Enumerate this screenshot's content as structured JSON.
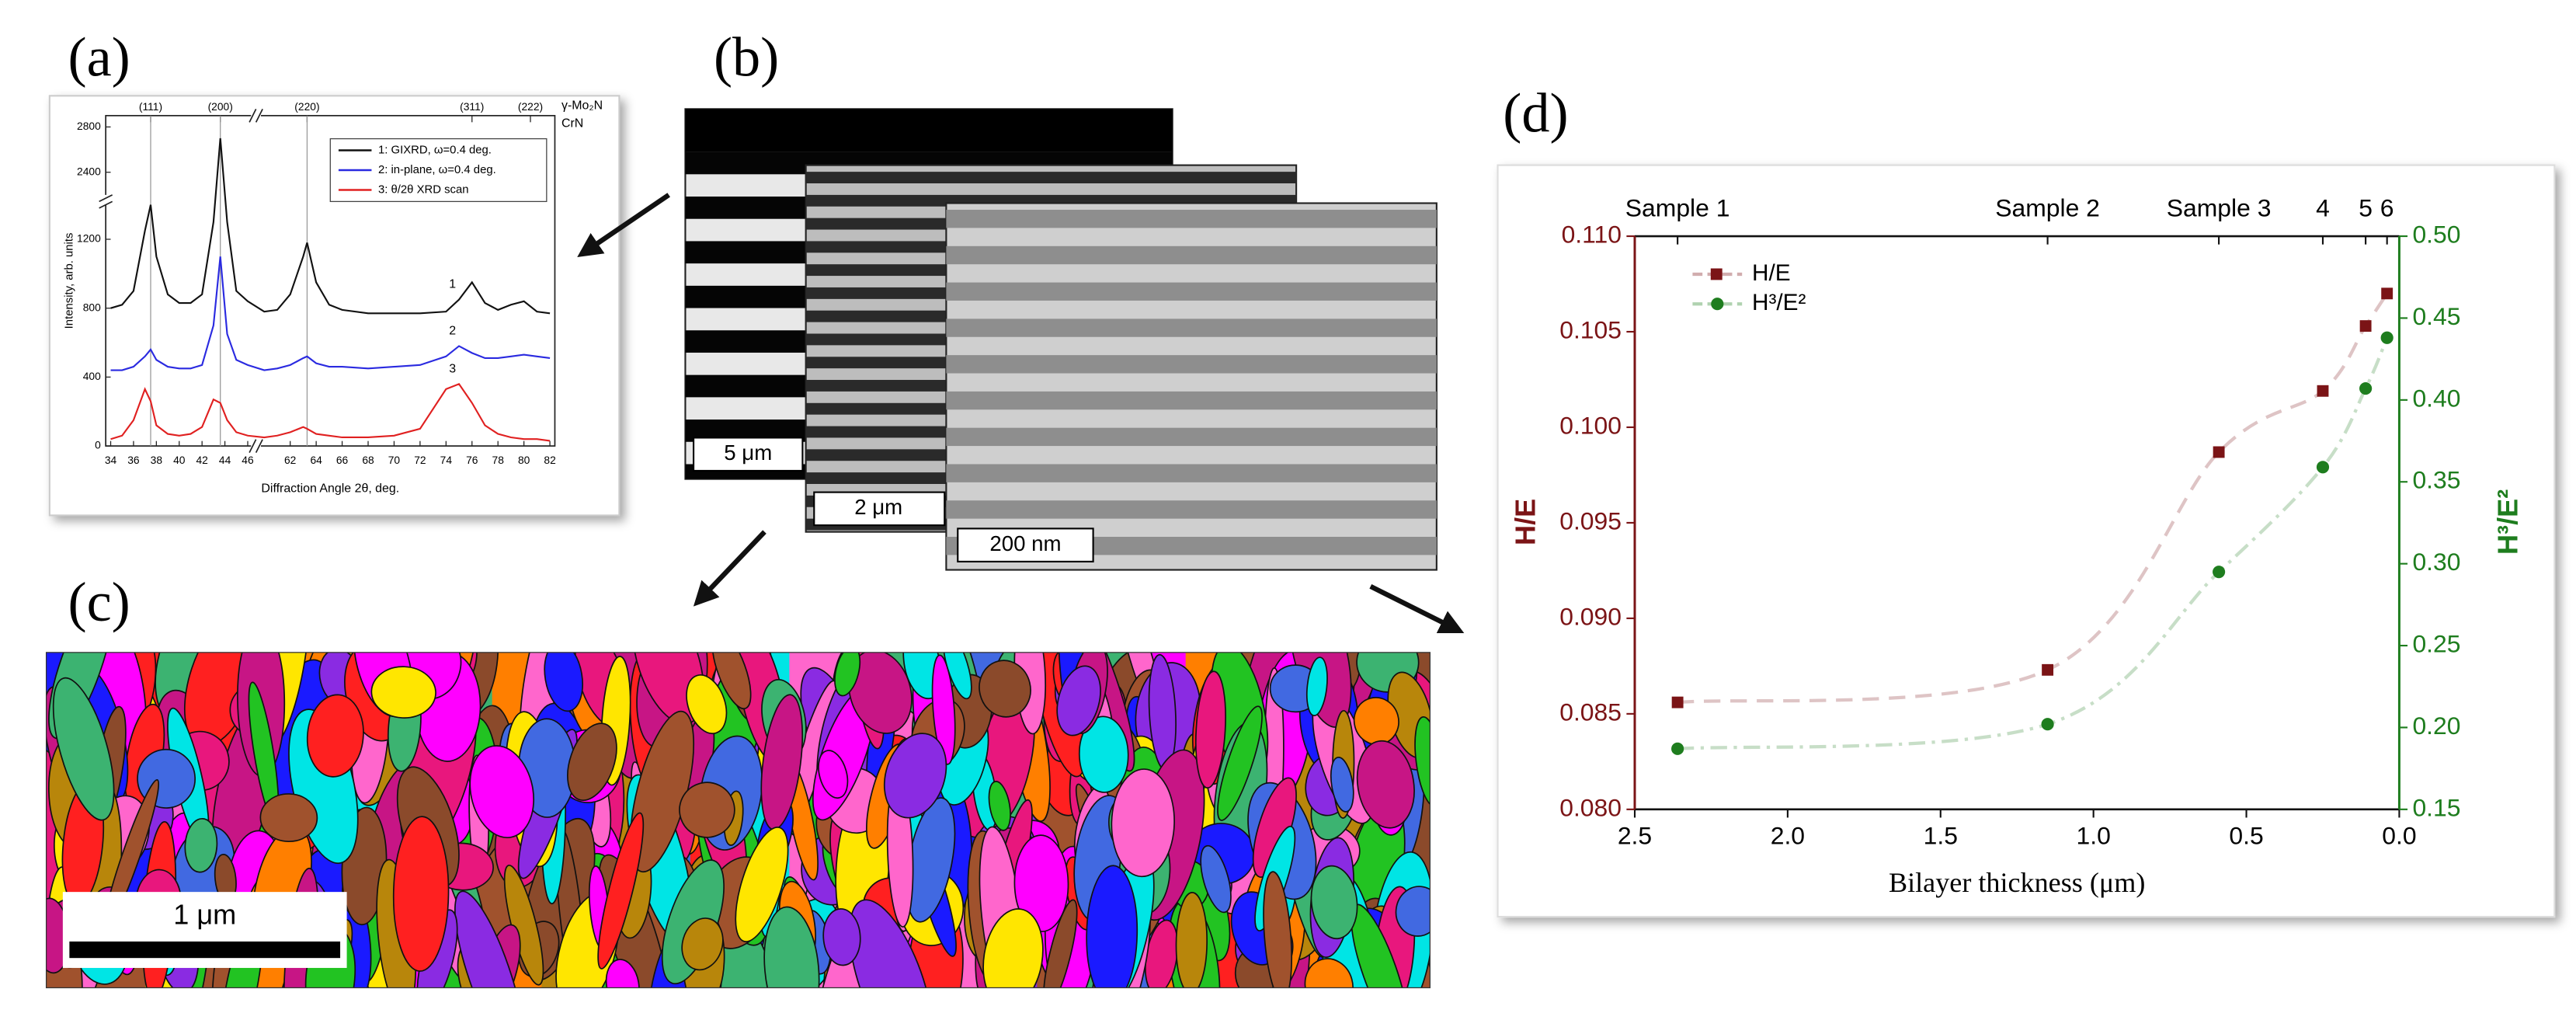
{
  "panel_labels": [
    "(a)",
    "(b)",
    "(c)",
    "(d)"
  ],
  "scale_bars": [
    "5 μm",
    "2 μm",
    "200 nm",
    "1 μm"
  ],
  "chart_data": [
    {
      "type": "line",
      "xlabel": "Diffraction Angle 2θ, deg.",
      "ylabel": "Intensity, arb. units",
      "xlim": [
        34,
        82
      ],
      "xbreak": [
        46,
        60
      ],
      "xticks": [
        34,
        36,
        38,
        40,
        42,
        44,
        46,
        62,
        64,
        66,
        68,
        70,
        72,
        74,
        76,
        78,
        80,
        82
      ],
      "ylim": [
        0,
        2900
      ],
      "ybreak": [
        1400,
        2200
      ],
      "yticks": [
        0,
        400,
        800,
        1200,
        2400,
        2800
      ],
      "x": [
        34,
        35,
        36,
        37,
        37.5,
        38,
        39,
        40,
        41,
        42,
        43,
        43.6,
        44.2,
        45,
        46,
        60,
        61,
        62,
        63,
        63.3,
        64,
        65,
        66,
        68,
        70,
        72,
        74,
        75,
        76,
        77,
        78,
        79,
        80,
        81,
        82
      ],
      "series": [
        {
          "name": "1: GIXRD, ω=0.4 deg.",
          "color": "#111111",
          "values": [
            800,
            820,
            900,
            1250,
            1400,
            1100,
            880,
            830,
            830,
            880,
            1300,
            2700,
            1300,
            900,
            840,
            780,
            790,
            880,
            1100,
            1180,
            950,
            820,
            790,
            770,
            770,
            770,
            780,
            850,
            950,
            830,
            790,
            820,
            840,
            780,
            770
          ]
        },
        {
          "name": "2: in-plane, ω=0.4 deg.",
          "color": "#2a2ae0",
          "values": [
            440,
            440,
            460,
            520,
            560,
            500,
            460,
            450,
            450,
            470,
            700,
            1100,
            650,
            500,
            470,
            440,
            450,
            470,
            510,
            520,
            480,
            460,
            460,
            450,
            460,
            470,
            520,
            580,
            540,
            510,
            510,
            520,
            530,
            520,
            510
          ]
        },
        {
          "name": "3: θ/2θ XRD scan",
          "color": "#e02020",
          "values": [
            40,
            60,
            150,
            330,
            260,
            120,
            70,
            60,
            70,
            110,
            270,
            250,
            150,
            80,
            60,
            50,
            60,
            80,
            110,
            100,
            70,
            60,
            50,
            50,
            60,
            100,
            330,
            360,
            250,
            120,
            70,
            50,
            40,
            40,
            30
          ]
        }
      ],
      "curve_labels": [
        "1",
        "2",
        "3"
      ],
      "annotations": [
        {
          "x": 37.5,
          "text": "(111)"
        },
        {
          "x": 43.6,
          "text": "(200)"
        },
        {
          "x": 63.3,
          "text": "(220)"
        },
        {
          "x": 76,
          "text": "(311)"
        },
        {
          "x": 80.5,
          "text": "(222)"
        }
      ],
      "phase_labels": [
        "γ-Mo₂N",
        "CrN"
      ],
      "legend": "upper right"
    },
    {
      "type": "scatter",
      "xlabel": "Bilayer thickness (μm)",
      "ylabel": "H/E",
      "y2label": "H³/E²",
      "xlim": [
        2.5,
        0.0
      ],
      "xticks": [
        2.5,
        {
          "value": 2.0,
          "label": "2.0"
        },
        1.5,
        {
          "value": 1.0,
          "label": "1.0"
        },
        0.5,
        {
          "value": 0.0,
          "label": "0.0"
        }
      ],
      "ylim": [
        0.08,
        0.11
      ],
      "yticks": [
        {
          "value": 0.08,
          "label": "0.080"
        },
        0.085,
        {
          "value": 0.09,
          "label": "0.090"
        },
        0.095,
        {
          "value": 0.1,
          "label": "0.100"
        },
        0.105,
        {
          "value": 0.11,
          "label": "0.110"
        }
      ],
      "y2lim": [
        0.15,
        0.5
      ],
      "y2ticks": [
        0.15,
        {
          "value": 0.2,
          "label": "0.20"
        },
        0.25,
        {
          "value": 0.3,
          "label": "0.30"
        },
        0.35,
        {
          "value": 0.4,
          "label": "0.40"
        },
        0.45,
        {
          "value": 0.5,
          "label": "0.50"
        }
      ],
      "x": [
        2.36,
        1.15,
        0.59,
        0.25,
        0.11,
        0.04
      ],
      "sample_labels": [
        "Sample 1",
        "Sample 2",
        "Sample 3",
        "4",
        "5",
        "6"
      ],
      "series": [
        {
          "name": "H/E",
          "color": "#7b1416",
          "marker": "square",
          "values": [
            0.0856,
            0.0873,
            0.0987,
            0.1019,
            0.1053,
            0.107
          ]
        },
        {
          "name": "H³/E²",
          "color": "#1e7d1e",
          "marker": "circle",
          "axis": "y2",
          "values": [
            0.187,
            0.202,
            0.295,
            0.359,
            0.407,
            0.438
          ]
        }
      ],
      "legend": "upper left"
    }
  ]
}
